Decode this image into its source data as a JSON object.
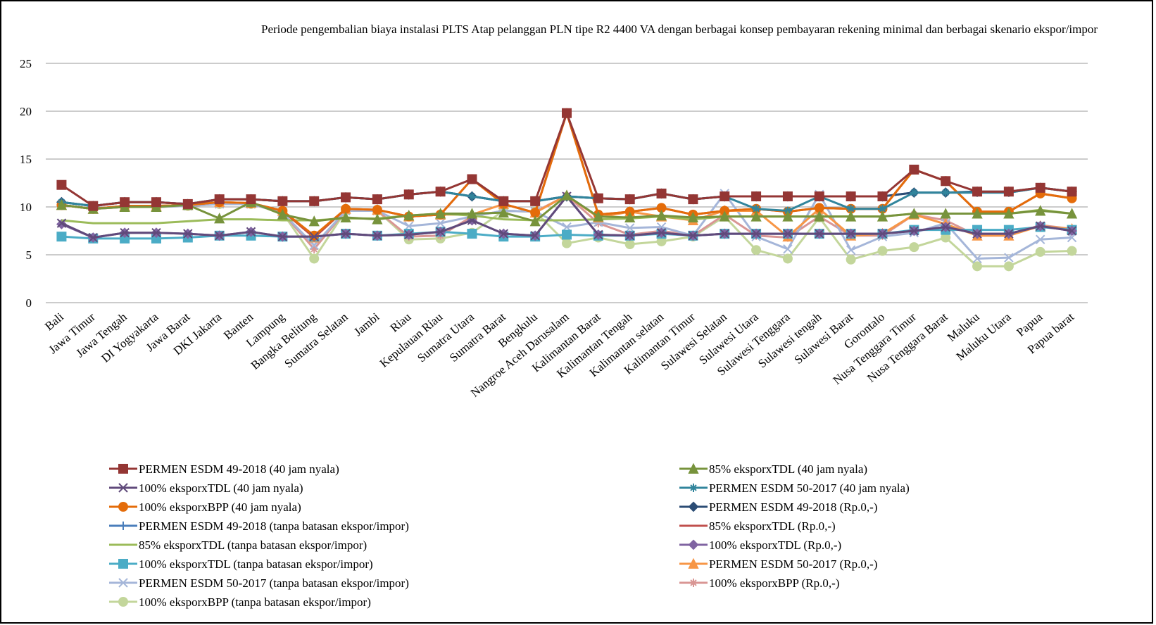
{
  "chart_data": {
    "type": "line",
    "title": "Periode pengembalian biaya instalasi  PLTS Atap pelanggan  PLN  tipe R2 4400 VA dengan  berbagai konsep pembayaran rekening  minimal  dan berbagai skenario ekspor/impor",
    "categories": [
      "Bali",
      "Jawa Timur",
      "Jawa Tengah",
      "DI Yogyakarta",
      "Jawa Barat",
      "DKI Jakarta",
      "Banten",
      "Lampung",
      "Bangka Belitung",
      "Sumatra Selatan",
      "Jambi",
      "Riau",
      "Kepulauan Riau",
      "Sumatra Utara",
      "Sumatra Barat",
      "Bengkulu",
      "Nangroe Aceh Darusalam",
      "Kalimantan Barat",
      "Kalimantan Tengah",
      "Kalimantan selatan",
      "Kalimantan Timur",
      "Sulawesi Selatan",
      "Sulawesi Utara",
      "Sulawesi Tenggara",
      "Sulawesi tengah",
      "Sulawesi Barat",
      "Gorontalo",
      "Nusa Tenggara Timur",
      "Nusa Tenggara Barat",
      "Maluku",
      "Maluku Utara",
      "Papua",
      "Papua barat"
    ],
    "ylim": [
      0,
      25
    ],
    "yticks": [
      0,
      5,
      10,
      15,
      20,
      25
    ],
    "grid": true,
    "series": [
      {
        "name": "PERMEN ESDM 49-2018 (40 jam nyala)",
        "color": "#943634",
        "marker": "square",
        "values": [
          12.3,
          10.1,
          10.5,
          10.5,
          10.3,
          10.8,
          10.8,
          10.6,
          10.6,
          11.0,
          10.8,
          11.3,
          11.6,
          12.9,
          10.6,
          10.6,
          19.8,
          10.9,
          10.8,
          11.4,
          10.8,
          11.1,
          11.1,
          11.1,
          11.1,
          11.1,
          11.1,
          13.9,
          12.7,
          11.6,
          11.6,
          12.0,
          11.6
        ]
      },
      {
        "name": "85% eksporxTDL (40 jam nyala)",
        "color": "#77933c",
        "marker": "triangle",
        "values": [
          10.2,
          9.8,
          10.0,
          10.0,
          10.2,
          8.8,
          10.5,
          9.2,
          8.5,
          8.9,
          8.7,
          9.1,
          9.3,
          9.3,
          9.4,
          8.5,
          11.2,
          9.0,
          8.9,
          9.1,
          8.9,
          9.0,
          9.0,
          9.0,
          9.0,
          9.0,
          9.0,
          9.3,
          9.3,
          9.3,
          9.3,
          9.6,
          9.3
        ]
      },
      {
        "name": "100% eksporxTDL (40 jam nyala)",
        "color": "#604a7b",
        "marker": "x",
        "values": [
          8.3,
          6.8,
          7.3,
          7.3,
          7.2,
          7.0,
          7.4,
          6.9,
          6.9,
          7.2,
          7.0,
          7.1,
          7.4,
          8.6,
          7.2,
          7.0,
          11.1,
          7.1,
          7.0,
          7.3,
          7.0,
          7.2,
          7.2,
          7.2,
          7.2,
          7.2,
          7.2,
          7.5,
          7.9,
          7.2,
          7.2,
          8.0,
          7.5
        ]
      },
      {
        "name": "PERMEN ESDM 50-2017 (40 jam nyala)",
        "color": "#31859c",
        "marker": "star",
        "values": [
          10.5,
          10.1,
          10.5,
          10.5,
          10.3,
          10.8,
          10.8,
          10.6,
          10.6,
          11.0,
          10.8,
          11.3,
          11.6,
          11.1,
          10.6,
          10.6,
          11.1,
          10.9,
          10.8,
          11.4,
          10.8,
          11.1,
          9.8,
          9.6,
          11.1,
          9.8,
          9.8,
          11.5,
          11.5,
          11.5,
          11.5,
          12.0,
          11.6
        ]
      },
      {
        "name": "100% eksporxBPP (40 jam nyala)",
        "color": "#e46c0a",
        "marker": "circle",
        "values": [
          10.2,
          9.8,
          10.1,
          10.1,
          10.2,
          10.5,
          10.4,
          9.6,
          7.0,
          9.8,
          9.7,
          9.0,
          9.2,
          12.9,
          10.3,
          9.4,
          19.8,
          9.2,
          9.5,
          9.9,
          9.2,
          9.6,
          9.8,
          9.5,
          9.9,
          9.8,
          9.8,
          13.9,
          12.7,
          9.5,
          9.5,
          11.4,
          10.9
        ]
      },
      {
        "name": "PERMEN ESDM 49-2018 (Rp.0,-)",
        "color": "#2c4d75",
        "marker": "diamond",
        "values": [
          10.5,
          10.1,
          10.5,
          10.5,
          10.3,
          10.8,
          10.8,
          10.6,
          10.6,
          11.0,
          10.8,
          11.3,
          11.6,
          11.1,
          10.6,
          10.6,
          11.1,
          10.9,
          10.8,
          11.4,
          10.8,
          11.1,
          11.1,
          11.1,
          11.1,
          11.1,
          11.1,
          11.5,
          11.5,
          11.6,
          11.6,
          12.0,
          11.6
        ]
      },
      {
        "name": "PERMEN ESDM 49-2018 (tanpa batasan ekspor/impor)",
        "color": "#4a7ebb",
        "marker": "plus",
        "values": [
          10.5,
          10.1,
          10.5,
          10.5,
          10.3,
          10.8,
          10.8,
          10.6,
          10.6,
          11.0,
          10.8,
          11.3,
          11.6,
          11.1,
          10.6,
          10.6,
          11.1,
          10.9,
          10.8,
          11.4,
          10.8,
          11.1,
          11.1,
          11.1,
          11.1,
          11.1,
          11.1,
          11.5,
          11.5,
          11.5,
          11.5,
          12.0,
          11.6
        ]
      },
      {
        "name": "85% eksporxTDL (Rp.0,-)",
        "color": "#c0504d",
        "marker": "none",
        "values": [
          10.2,
          9.8,
          10.1,
          10.1,
          10.2,
          10.5,
          10.4,
          9.6,
          6.8,
          9.8,
          9.7,
          9.0,
          9.2,
          12.9,
          10.3,
          9.4,
          19.8,
          9.2,
          9.5,
          9.9,
          9.2,
          9.6,
          9.8,
          9.5,
          9.9,
          9.8,
          9.8,
          13.9,
          12.7,
          9.5,
          9.5,
          11.4,
          10.9
        ]
      },
      {
        "name": "85% eksporxTDL (tanpa batasan ekspor/impor)",
        "color": "#9bbb59",
        "marker": "none",
        "values": [
          8.6,
          8.3,
          8.3,
          8.3,
          8.5,
          8.7,
          8.7,
          8.6,
          8.6,
          8.8,
          8.8,
          9.1,
          9.3,
          9.1,
          8.7,
          8.6,
          8.6,
          8.7,
          8.8,
          9.0,
          8.7,
          9.0,
          9.0,
          9.0,
          9.0,
          9.0,
          9.0,
          9.3,
          9.3,
          9.3,
          9.3,
          9.7,
          9.3
        ]
      },
      {
        "name": "100% eksporxTDL (Rp.0,-)",
        "color": "#8064a2",
        "marker": "diamond",
        "values": [
          8.2,
          6.8,
          7.3,
          7.3,
          7.2,
          7.0,
          7.4,
          6.9,
          6.9,
          7.2,
          7.0,
          7.1,
          7.4,
          8.6,
          7.2,
          7.0,
          11.1,
          7.1,
          7.0,
          7.3,
          7.0,
          7.2,
          7.2,
          7.2,
          7.2,
          7.2,
          7.2,
          7.5,
          7.9,
          7.2,
          7.2,
          8.0,
          7.5
        ]
      },
      {
        "name": "100% eksporxTDL (tanpa batasan ekspor/impor)",
        "color": "#4bacc6",
        "marker": "square",
        "values": [
          6.9,
          6.7,
          6.7,
          6.7,
          6.8,
          7.0,
          7.0,
          6.9,
          6.9,
          7.2,
          7.0,
          7.2,
          7.4,
          7.2,
          6.9,
          6.9,
          7.1,
          7.0,
          7.0,
          7.2,
          7.0,
          7.2,
          7.2,
          7.2,
          7.2,
          7.2,
          7.2,
          7.6,
          7.6,
          7.6,
          7.6,
          7.9,
          7.6
        ]
      },
      {
        "name": "PERMEN ESDM 50-2017 (Rp.0,-)",
        "color": "#f79646",
        "marker": "triangle",
        "values": [
          10.2,
          9.8,
          10.1,
          10.1,
          10.2,
          10.5,
          10.4,
          9.6,
          6.8,
          9.8,
          9.7,
          9.0,
          9.2,
          9.2,
          10.3,
          9.4,
          11.2,
          8.9,
          9.5,
          9.0,
          8.6,
          9.6,
          9.6,
          6.9,
          9.8,
          7.0,
          7.2,
          9.2,
          8.2,
          7.0,
          7.0,
          8.0,
          7.7
        ]
      },
      {
        "name": "PERMEN ESDM 50-2017 (tanpa batasan ekspor/impor)",
        "color": "#a5b6d9",
        "marker": "x",
        "values": [
          10.2,
          9.8,
          10.0,
          10.0,
          10.1,
          10.3,
          10.3,
          9.4,
          6.0,
          9.6,
          9.6,
          8.0,
          8.3,
          9.0,
          9.6,
          9.5,
          7.9,
          8.4,
          7.8,
          7.9,
          7.0,
          11.4,
          6.9,
          5.6,
          11.3,
          5.5,
          6.9,
          7.3,
          8.3,
          4.6,
          4.7,
          6.6,
          6.8
        ]
      },
      {
        "name": "100% eksporxBPP (Rp.0,-)",
        "color": "#d99694",
        "marker": "star",
        "values": [
          10.2,
          9.8,
          10.0,
          10.0,
          10.1,
          10.3,
          10.3,
          9.4,
          5.6,
          9.6,
          9.6,
          6.9,
          7.0,
          9.0,
          9.6,
          9.5,
          11.2,
          8.3,
          7.1,
          7.5,
          7.0,
          9.2,
          7.0,
          6.8,
          9.0,
          7.0,
          7.0,
          9.2,
          8.6,
          7.0,
          7.0,
          8.1,
          7.7
        ]
      },
      {
        "name": "100% eksporxBPP (tanpa batasan ekspor/impor)",
        "color": "#c3d69b",
        "marker": "circle",
        "values": [
          10.2,
          9.8,
          10.0,
          10.0,
          10.1,
          10.3,
          10.3,
          9.4,
          4.6,
          9.6,
          9.6,
          6.6,
          6.7,
          7.3,
          9.6,
          9.5,
          6.2,
          6.8,
          6.1,
          6.4,
          6.9,
          9.0,
          5.5,
          4.6,
          8.9,
          4.5,
          5.4,
          5.8,
          6.8,
          3.8,
          3.8,
          5.3,
          5.4
        ]
      }
    ]
  }
}
